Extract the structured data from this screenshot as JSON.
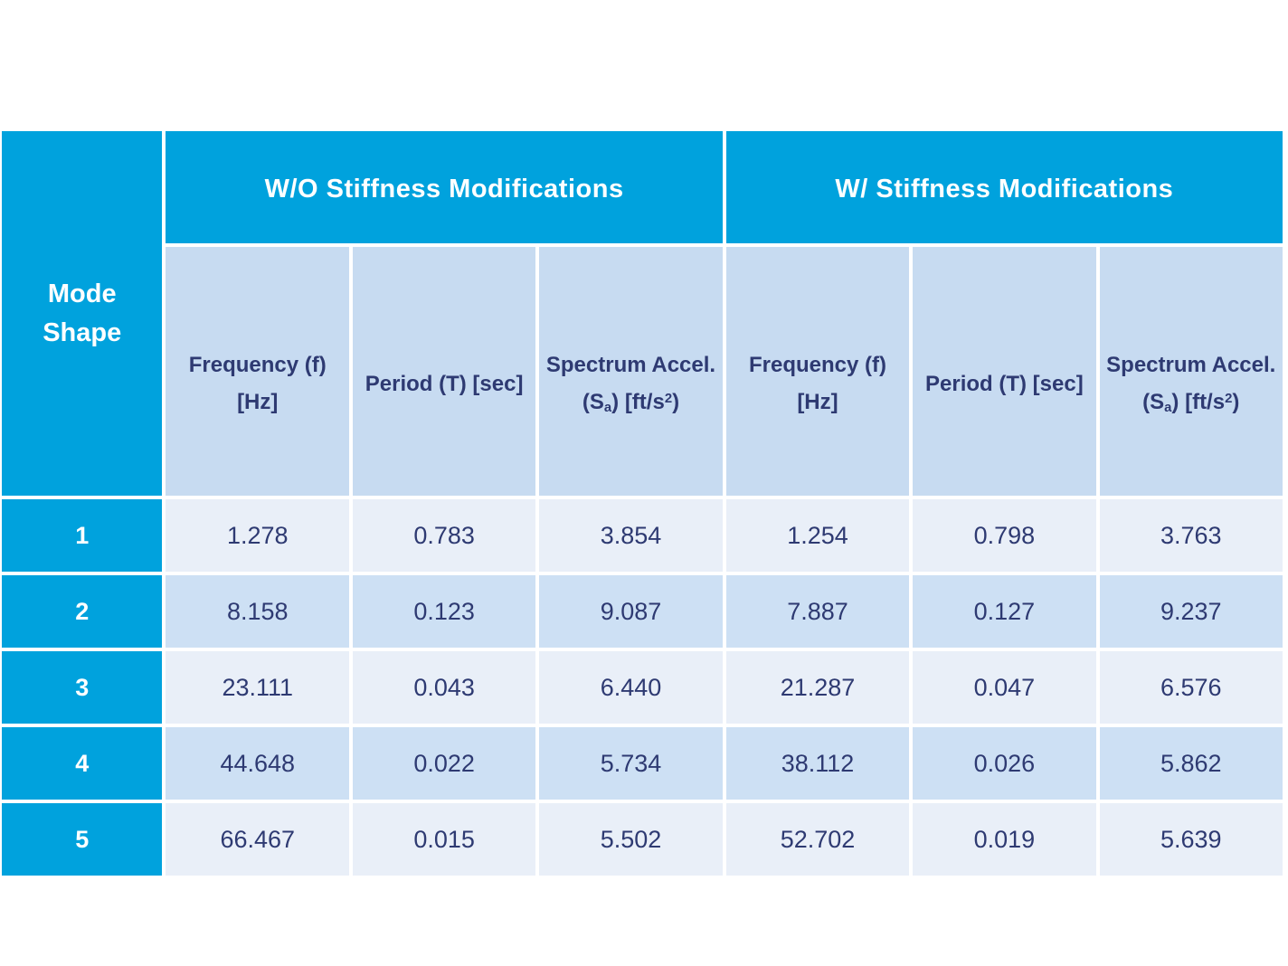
{
  "colors": {
    "accent_cyan": "#00A2DD",
    "navy_text": "#2E3A72",
    "subheader_bg": "#C7DBF1",
    "row_odd_bg": "#E9EFF8",
    "row_even_bg": "#CDE0F4",
    "background": "#FFFFFF"
  },
  "table": {
    "corner_header": {
      "line1": "Mode",
      "line2": "Shape"
    },
    "groups": [
      {
        "label": "W/O Stiffness Modifications"
      },
      {
        "label": "W/ Stiffness Modifications"
      }
    ],
    "columns": {
      "frequency": {
        "line1": "Frequency (f)",
        "line2": "[Hz]"
      },
      "period": {
        "line1": "Period (T) [sec]"
      },
      "spectrum": {
        "line1": "Spectrum Accel.",
        "l2_pre": "(S",
        "l2_sub": "a",
        "l2_mid": ") [ft/s",
        "l2_sup": "2",
        "l2_post": ")"
      }
    },
    "rows": [
      {
        "mode": "1",
        "values": [
          "1.278",
          "0.783",
          "3.854",
          "1.254",
          "0.798",
          "3.763"
        ]
      },
      {
        "mode": "2",
        "values": [
          "8.158",
          "0.123",
          "9.087",
          "7.887",
          "0.127",
          "9.237"
        ]
      },
      {
        "mode": "3",
        "values": [
          "23.111",
          "0.043",
          "6.440",
          "21.287",
          "0.047",
          "6.576"
        ]
      },
      {
        "mode": "4",
        "values": [
          "44.648",
          "0.022",
          "5.734",
          "38.112",
          "0.026",
          "5.862"
        ]
      },
      {
        "mode": "5",
        "values": [
          "66.467",
          "0.015",
          "5.502",
          "52.702",
          "0.019",
          "5.639"
        ]
      }
    ]
  },
  "chart_data": {
    "type": "table",
    "title": "",
    "corner_header": "Mode Shape",
    "column_groups": [
      "W/O Stiffness Modifications",
      "W/ Stiffness Modifications"
    ],
    "columns": [
      "Mode Shape",
      "Frequency (f) [Hz]",
      "Period (T) [sec]",
      "Spectrum Accel. (Sa) [ft/s2]",
      "Frequency (f) [Hz]",
      "Period (T) [sec]",
      "Spectrum Accel. (Sa) [ft/s2]"
    ],
    "rows": [
      [
        1,
        1.278,
        0.783,
        3.854,
        1.254,
        0.798,
        3.763
      ],
      [
        2,
        8.158,
        0.123,
        9.087,
        7.887,
        0.127,
        9.237
      ],
      [
        3,
        23.111,
        0.043,
        6.44,
        21.287,
        0.047,
        6.576
      ],
      [
        4,
        44.648,
        0.022,
        5.734,
        38.112,
        0.026,
        5.862
      ],
      [
        5,
        66.467,
        0.015,
        5.502,
        52.702,
        0.019,
        5.639
      ]
    ]
  }
}
